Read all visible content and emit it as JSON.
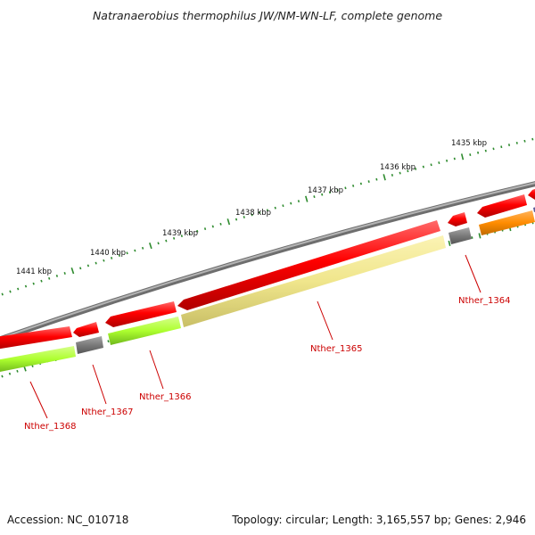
{
  "title": "Natranaerobius thermophilus JW/NM-WN-LF, complete genome",
  "footer": {
    "accession": "Accession: NC_010718",
    "summary": "Topology: circular; Length: 3,165,557 bp; Genes: 2,946"
  },
  "scale_labels": [
    "1435 kbp",
    "1436 kbp",
    "1437 kbp",
    "1438 kbp",
    "1439 kbp",
    "1440 kbp",
    "1441 kbp"
  ],
  "genes": [
    {
      "label": "Nther_1364",
      "feature_color": "#ff8c00"
    },
    {
      "label": "Nther_1365",
      "feature_color": "#f0e68c"
    },
    {
      "label": "Nther_1366",
      "feature_color": "#adff2f"
    },
    {
      "label": "Nther_1367",
      "feature_color": "#696969"
    },
    {
      "label": "Nther_1368",
      "feature_color": "#adff2f"
    }
  ],
  "colors": {
    "backbone": "#8c8c8c",
    "cds": "#e00000",
    "tick": "#2e8b2e",
    "label": "#cc0000"
  }
}
